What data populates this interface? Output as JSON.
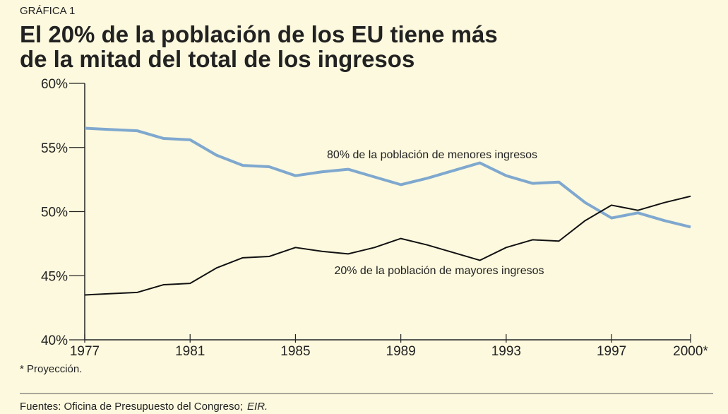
{
  "chart_data": {
    "type": "line",
    "kicker": "GRÁFICA 1",
    "title_lines": [
      "El 20% de la población de los EU tiene más",
      "de la mitad del total de los ingresos"
    ],
    "x": [
      1977,
      1978,
      1979,
      1980,
      1981,
      1982,
      1983,
      1984,
      1985,
      1986,
      1987,
      1988,
      1989,
      1990,
      1991,
      1992,
      1993,
      1994,
      1995,
      1996,
      1997,
      1998,
      1999,
      2000
    ],
    "series": [
      {
        "name": "80% de la población de menores ingresos",
        "color": "#7fa8cf",
        "values": [
          56.5,
          56.4,
          56.3,
          55.7,
          55.6,
          54.4,
          53.6,
          53.5,
          52.8,
          53.1,
          53.3,
          52.7,
          52.1,
          52.6,
          53.2,
          53.8,
          52.8,
          52.2,
          52.3,
          50.7,
          49.5,
          49.9,
          49.3,
          48.8
        ]
      },
      {
        "name": "20% de la población de mayores ingresos",
        "color": "#111111",
        "values": [
          43.5,
          43.6,
          43.7,
          44.3,
          44.4,
          45.6,
          46.4,
          46.5,
          47.2,
          46.9,
          46.7,
          47.2,
          47.9,
          47.4,
          46.8,
          46.2,
          47.2,
          47.8,
          47.7,
          49.3,
          50.5,
          50.1,
          50.7,
          51.2
        ]
      }
    ],
    "xlim": [
      1977,
      2000
    ],
    "xticks": [
      1977,
      1981,
      1985,
      1989,
      1993,
      1997,
      {
        "value": 2000,
        "label": "2000*"
      }
    ],
    "ylim": [
      40,
      60
    ],
    "yticks": [
      {
        "value": 40,
        "label": "40%"
      },
      {
        "value": 45,
        "label": "45%"
      },
      {
        "value": 50,
        "label": "50%"
      },
      {
        "value": 55,
        "label": "55%"
      },
      {
        "value": 60,
        "label": "60%"
      }
    ],
    "footnote": "* Proyección.",
    "source": "Fuentes: Oficina de Presupuesto del Congreso;",
    "source_em": "EIR."
  }
}
